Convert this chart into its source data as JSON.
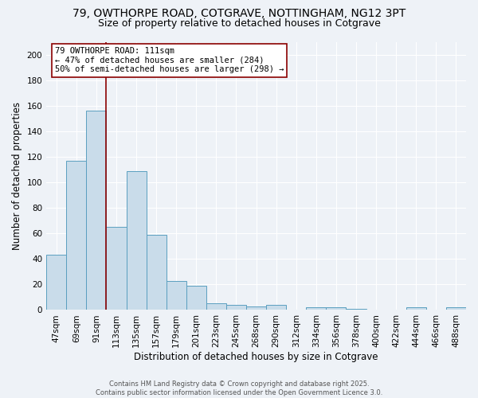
{
  "title": "79, OWTHORPE ROAD, COTGRAVE, NOTTINGHAM, NG12 3PT",
  "subtitle": "Size of property relative to detached houses in Cotgrave",
  "xlabel": "Distribution of detached houses by size in Cotgrave",
  "ylabel": "Number of detached properties",
  "categories": [
    "47sqm",
    "69sqm",
    "91sqm",
    "113sqm",
    "135sqm",
    "157sqm",
    "179sqm",
    "201sqm",
    "223sqm",
    "245sqm",
    "268sqm",
    "290sqm",
    "312sqm",
    "334sqm",
    "356sqm",
    "378sqm",
    "400sqm",
    "422sqm",
    "444sqm",
    "466sqm",
    "488sqm"
  ],
  "values": [
    43,
    117,
    156,
    65,
    109,
    59,
    23,
    19,
    5,
    4,
    3,
    4,
    0,
    2,
    2,
    1,
    0,
    0,
    2,
    0,
    2
  ],
  "bar_color": "#c9dcea",
  "bar_edge_color": "#5a9fc0",
  "vline_pos": 2.5,
  "vline_color": "#8b0000",
  "annotation_text": "79 OWTHORPE ROAD: 111sqm\n← 47% of detached houses are smaller (284)\n50% of semi-detached houses are larger (298) →",
  "annotation_box_color": "white",
  "annotation_box_edge_color": "#8b0000",
  "ylim": [
    0,
    210
  ],
  "yticks": [
    0,
    20,
    40,
    60,
    80,
    100,
    120,
    140,
    160,
    180,
    200
  ],
  "background_color": "#eef2f7",
  "plot_bg_color": "#eef2f7",
  "grid_color": "#ffffff",
  "footer_line1": "Contains HM Land Registry data © Crown copyright and database right 2025.",
  "footer_line2": "Contains public sector information licensed under the Open Government Licence 3.0.",
  "title_fontsize": 10,
  "subtitle_fontsize": 9,
  "axis_label_fontsize": 8.5,
  "tick_fontsize": 7.5,
  "annotation_fontsize": 7.5,
  "footer_fontsize": 6
}
